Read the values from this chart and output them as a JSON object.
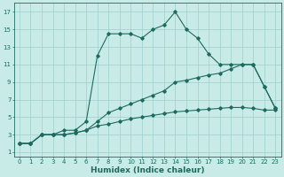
{
  "xlabel": "Humidex (Indice chaleur)",
  "bg_color": "#c8ebe8",
  "grid_color": "#9dcfcc",
  "line_color": "#1e6b5e",
  "xlim": [
    -0.5,
    23.5
  ],
  "ylim": [
    0.5,
    18
  ],
  "xticks": [
    0,
    1,
    2,
    3,
    4,
    5,
    6,
    7,
    8,
    9,
    10,
    11,
    12,
    13,
    14,
    15,
    16,
    17,
    18,
    19,
    20,
    21,
    22,
    23
  ],
  "yticks": [
    1,
    3,
    5,
    7,
    9,
    11,
    13,
    15,
    17
  ],
  "curve_bottom_x": [
    0,
    1,
    2,
    3,
    4,
    5,
    6,
    7,
    8,
    9,
    10,
    11,
    12,
    13,
    14,
    15,
    16,
    17,
    18,
    19,
    20,
    21,
    22,
    23
  ],
  "curve_bottom_y": [
    2,
    2,
    3,
    3,
    3,
    3.2,
    3.5,
    4,
    4.2,
    4.5,
    4.8,
    5,
    5.2,
    5.4,
    5.6,
    5.7,
    5.8,
    5.9,
    6,
    6.1,
    6.1,
    6.0,
    5.8,
    5.8
  ],
  "curve_mid_x": [
    0,
    1,
    2,
    3,
    4,
    5,
    6,
    7,
    8,
    9,
    10,
    11,
    12,
    13,
    14,
    15,
    16,
    17,
    18,
    19,
    20,
    21,
    22,
    23
  ],
  "curve_mid_y": [
    2,
    2,
    3,
    3,
    3,
    3.2,
    3.5,
    4.5,
    5.5,
    6,
    6.5,
    7,
    7.5,
    8,
    9,
    9.2,
    9.5,
    9.8,
    10,
    10.5,
    11,
    11,
    8.5,
    6
  ],
  "curve_top_x": [
    0,
    1,
    2,
    3,
    4,
    5,
    6,
    7,
    8,
    9,
    10,
    11,
    12,
    13,
    14,
    15,
    16,
    17,
    18,
    19,
    20,
    21,
    22,
    23
  ],
  "curve_top_y": [
    2,
    2,
    3,
    3,
    3.5,
    3.5,
    4.5,
    12,
    14.5,
    14.5,
    14.5,
    14,
    15,
    15.5,
    17,
    15,
    14,
    12.2,
    11,
    11,
    11,
    11,
    8.5,
    6
  ],
  "label_fontsize": 6.5,
  "tick_fontsize": 5.0,
  "marker_size": 1.8,
  "line_width": 0.8
}
